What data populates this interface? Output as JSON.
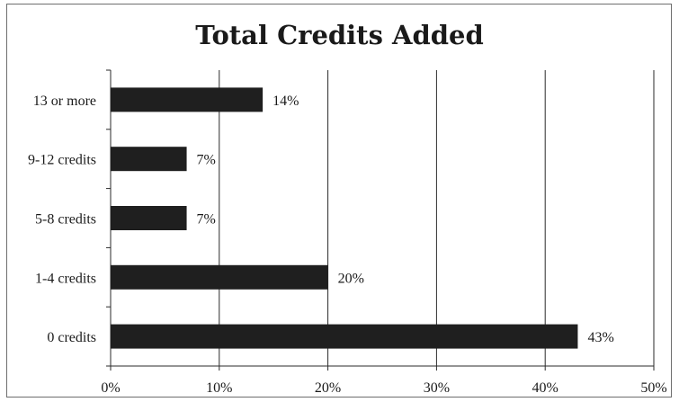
{
  "chart_data": {
    "type": "bar",
    "orientation": "horizontal",
    "title": "Total Credits Added",
    "xlabel": "",
    "ylabel": "",
    "categories": [
      "13 or more",
      "9-12 credits",
      "5-8 credits",
      "1-4 credits",
      "0 credits"
    ],
    "values": [
      14,
      7,
      7,
      20,
      43
    ],
    "data_labels": [
      "14%",
      "7%",
      "7%",
      "20%",
      "43%"
    ],
    "xlim": [
      0,
      50
    ],
    "x_ticks": [
      0,
      10,
      20,
      30,
      40,
      50
    ],
    "x_tick_labels": [
      "0%",
      "10%",
      "20%",
      "30%",
      "40%",
      "50%"
    ],
    "grid": "vertical",
    "legend": "none",
    "bar_color": "#1f1f1f"
  }
}
